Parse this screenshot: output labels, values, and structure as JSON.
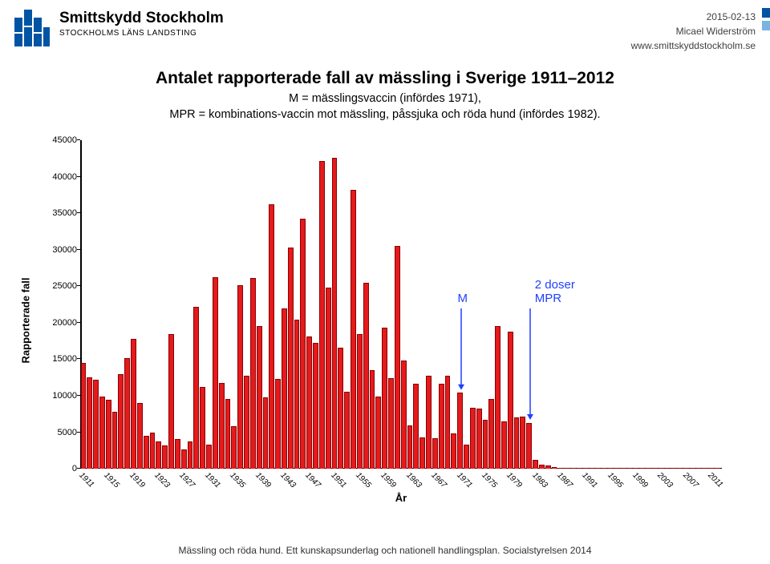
{
  "header": {
    "logo_title": "Smittskydd Stockholm",
    "logo_sub": "STOCKHOLMS LÄNS LANDSTING",
    "date": "2015-02-13",
    "author": "Micael Widerström",
    "url": "www.smittskyddstockholm.se",
    "logo_color": "#0054a4",
    "accent_colors": [
      "#0054a4",
      "#7ab4e0"
    ]
  },
  "title": {
    "main": "Antalet rapporterade fall av mässling i Sverige 1911–2012",
    "sub": "M = mässlingsvaccin (infördes 1971),\nMPR = kombinations-vaccin mot mässling, påssjuka och röda hund (infördes 1982)."
  },
  "chart": {
    "type": "bar",
    "ylabel": "Rapporterade fall",
    "xlabel": "År",
    "ylim": [
      0,
      45000
    ],
    "ytick_step": 5000,
    "bar_color": "#e41a1c",
    "bar_border": "#8b0000",
    "background": "#ffffff",
    "axis_color": "#000000",
    "annotation_color": "#2040ff",
    "label_fontsize": 13,
    "tick_fontsize": 11,
    "years_start": 1911,
    "years_end": 2012,
    "xtick_step": 4,
    "values": [
      14500,
      12500,
      12200,
      9900,
      9400,
      7800,
      13000,
      15200,
      17800,
      9000,
      4500,
      5000,
      3800,
      3200,
      18400,
      4100,
      2600,
      3800,
      22200,
      11200,
      3300,
      26200,
      11800,
      9600,
      5800,
      25200,
      12700,
      26100,
      19600,
      9800,
      36200,
      12300,
      22000,
      30300,
      20400,
      34300,
      18100,
      17200,
      42200,
      24800,
      42600,
      16600,
      10600,
      38200,
      18400,
      25500,
      13500,
      9900,
      19300,
      12400,
      30500,
      14800,
      5900,
      11700,
      4300,
      12700,
      4200,
      11700,
      12800,
      4800,
      10400,
      3300,
      8400,
      8300,
      6700,
      9600,
      19600,
      6500,
      18800,
      7000,
      7100,
      6300,
      1200,
      600,
      500,
      200,
      150,
      100,
      80,
      50,
      40,
      30,
      25,
      20,
      20,
      20,
      20,
      20,
      20,
      20,
      20,
      20,
      20,
      20,
      20,
      20,
      20,
      20,
      20,
      20,
      20,
      20
    ],
    "annotations": [
      {
        "label": "M",
        "year": 1971,
        "y_from": 22000,
        "color": "#2040ff"
      },
      {
        "label": "2 doser\nMPR",
        "year": 1982,
        "y_from": 22000,
        "y_to": 8000,
        "color": "#2040ff"
      }
    ]
  },
  "footer": {
    "text": "Mässling och röda hund. Ett kunskapsunderlag och nationell handlingsplan. Socialstyrelsen 2014"
  }
}
